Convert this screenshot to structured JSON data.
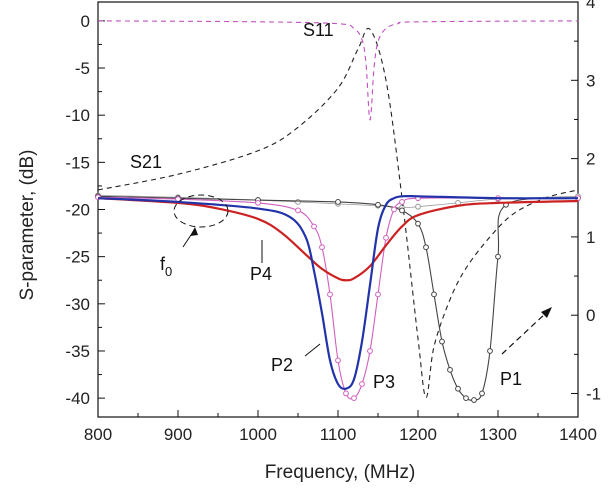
{
  "chart_data": {
    "type": "line",
    "xlabel": "Frequency, (MHz)",
    "ylabel": "S-parameter, (dB)",
    "xlim": [
      800,
      1400
    ],
    "ylim": [
      -42,
      2
    ],
    "y2lim": [
      -1.3,
      4
    ],
    "x_ticks": [
      "800",
      "900",
      "1000",
      "1100",
      "1200",
      "1300",
      "1400"
    ],
    "y_ticks": [
      "0",
      "-5",
      "-10",
      "-15",
      "-20",
      "-25",
      "-30",
      "-35",
      "-40"
    ],
    "y2_ticks": [
      "4",
      "3",
      "2",
      "1",
      "0",
      "-1"
    ],
    "annotations": {
      "s11": "S11",
      "s21": "S21",
      "f0_base": "f",
      "f0_sub": "0",
      "p1": "P1",
      "p2": "P2",
      "p3": "P3",
      "p4": "P4"
    },
    "series": [
      {
        "name": "S11",
        "color": "#c050c0",
        "style": "dashed",
        "axis": "left",
        "x": [
          800,
          1000,
          1100,
          1120,
          1130,
          1135,
          1140,
          1145,
          1150,
          1160,
          1175,
          1200,
          1400
        ],
        "y": [
          0,
          -0.1,
          -0.3,
          -0.8,
          -2.0,
          -4.5,
          -10.5,
          -5.0,
          -2.2,
          -0.8,
          -0.3,
          -0.1,
          0
        ]
      },
      {
        "name": "S21",
        "color": "#222222",
        "style": "dashed",
        "axis": "right",
        "x": [
          800,
          900,
          1000,
          1050,
          1100,
          1125,
          1140,
          1160,
          1180,
          1200,
          1210,
          1220,
          1240,
          1260,
          1290,
          1320,
          1360,
          1400
        ],
        "y": [
          1.6,
          1.8,
          2.1,
          2.4,
          2.9,
          3.4,
          3.65,
          3.0,
          1.5,
          -0.3,
          -1.05,
          -0.4,
          0.2,
          0.6,
          1.0,
          1.3,
          1.5,
          1.6
        ]
      },
      {
        "name": "P1",
        "color": "#444444",
        "style": "solid-markers",
        "axis": "left",
        "x": [
          800,
          900,
          1000,
          1100,
          1150,
          1180,
          1200,
          1210,
          1220,
          1230,
          1240,
          1250,
          1260,
          1270,
          1280,
          1290,
          1300,
          1310,
          1400
        ],
        "y": [
          -18.6,
          -18.8,
          -19.0,
          -19.2,
          -19.5,
          -20.1,
          -21.5,
          -24.0,
          -29.0,
          -34.0,
          -37.0,
          -39.0,
          -40.0,
          -40.2,
          -39.5,
          -35.0,
          -25.0,
          -19.5,
          -18.8
        ]
      },
      {
        "name": "P2",
        "color": "#2233aa",
        "style": "solid",
        "axis": "left",
        "x": [
          800,
          900,
          1000,
          1040,
          1060,
          1070,
          1080,
          1090,
          1100,
          1110,
          1120,
          1130,
          1140,
          1150,
          1160,
          1170,
          1180,
          1200,
          1300,
          1400
        ],
        "y": [
          -18.8,
          -19.2,
          -19.9,
          -20.8,
          -23.0,
          -26.5,
          -31.0,
          -36.0,
          -38.5,
          -39.0,
          -38.0,
          -34.0,
          -28.0,
          -22.0,
          -19.5,
          -18.8,
          -18.6,
          -18.6,
          -18.8,
          -18.8
        ]
      },
      {
        "name": "P3",
        "color": "#d060c0",
        "style": "solid-markers",
        "axis": "left",
        "x": [
          800,
          900,
          1000,
          1050,
          1070,
          1080,
          1090,
          1100,
          1110,
          1120,
          1130,
          1140,
          1150,
          1160,
          1170,
          1180,
          1200,
          1300,
          1400
        ],
        "y": [
          -18.7,
          -18.9,
          -19.3,
          -20.1,
          -21.8,
          -24.0,
          -29.0,
          -36.0,
          -39.5,
          -40.0,
          -38.5,
          -35.0,
          -29.0,
          -23.0,
          -20.0,
          -19.2,
          -18.8,
          -18.8,
          -18.8
        ]
      },
      {
        "name": "P4",
        "color": "#cc2222",
        "style": "solid",
        "axis": "left",
        "x": [
          800,
          900,
          950,
          1000,
          1030,
          1060,
          1080,
          1100,
          1110,
          1120,
          1140,
          1160,
          1180,
          1200,
          1250,
          1300,
          1400
        ],
        "y": [
          -18.8,
          -19.3,
          -19.9,
          -21.0,
          -22.5,
          -24.8,
          -26.3,
          -27.3,
          -27.5,
          -27.3,
          -26.0,
          -23.8,
          -21.8,
          -20.6,
          -19.6,
          -19.3,
          -19.1
        ]
      },
      {
        "name": "baseline",
        "color": "#999999",
        "style": "markers",
        "axis": "left",
        "x": [
          800,
          900,
          1000,
          1050,
          1100,
          1150,
          1180,
          1200,
          1250,
          1300,
          1400
        ],
        "y": [
          -18.5,
          -18.7,
          -19.0,
          -19.2,
          -19.4,
          -19.6,
          -19.8,
          -19.7,
          -19.3,
          -18.9,
          -18.6
        ]
      }
    ]
  }
}
